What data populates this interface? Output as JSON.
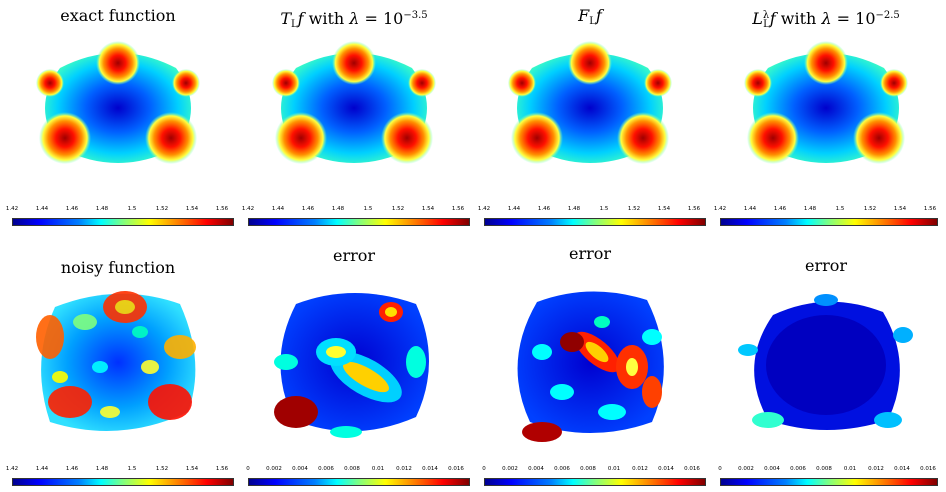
{
  "panels": [
    {
      "title": "exact function",
      "kind": "smooth"
    },
    {
      "title_pre": "T",
      "title_sub": "L",
      "title_mid": "f with λ = 10",
      "title_sup": "−3.5",
      "kind": "smooth"
    },
    {
      "title_pre": "F",
      "title_sub": "L",
      "title_mid": "f",
      "title_sup": "",
      "kind": "smooth"
    },
    {
      "title_pre": "L",
      "title_sub": "L",
      "title_supL": "λ",
      "title_mid": "f with λ = 10",
      "title_sup": "−2.5",
      "kind": "smooth"
    },
    {
      "title": "noisy function",
      "kind": "noisy"
    },
    {
      "title": "error",
      "kind": "error1"
    },
    {
      "title": "error",
      "kind": "error2"
    },
    {
      "title": "error",
      "kind": "error3"
    }
  ],
  "colorbar_ticks_value": [
    "1.42",
    "1.44",
    "1.46",
    "1.48",
    "1.5",
    "1.52",
    "1.54",
    "1.56"
  ],
  "colorbar_ticks_error": [
    "0",
    "0.002",
    "0.004",
    "0.006",
    "0.008",
    "0.01",
    "0.012",
    "0.014",
    "0.016"
  ],
  "colors": {
    "dark_blue": "#00008f",
    "blue": "#0000ff",
    "cyan": "#00ffff",
    "yellow": "#ffff00",
    "red": "#ff0000",
    "dark_red": "#800000"
  }
}
